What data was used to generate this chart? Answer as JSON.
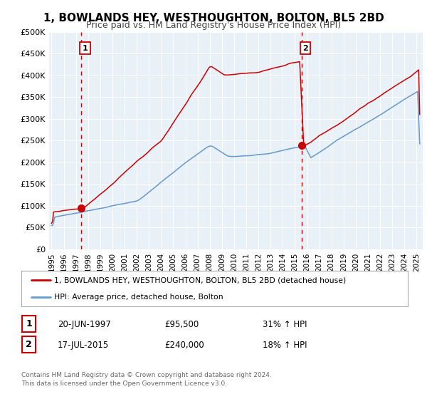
{
  "title": "1, BOWLANDS HEY, WESTHOUGHTON, BOLTON, BL5 2BD",
  "subtitle": "Price paid vs. HM Land Registry's House Price Index (HPI)",
  "title_fontsize": 11,
  "subtitle_fontsize": 9,
  "bg_color": "#ffffff",
  "plot_bg_color": "#e8f0f8",
  "grid_color": "#ffffff",
  "red_color": "#cc0000",
  "blue_color": "#6699cc",
  "sale1_x": 1997.46,
  "sale1_y": 95500,
  "sale2_x": 2015.54,
  "sale2_y": 240000,
  "xmin": 1994.8,
  "xmax": 2025.5,
  "ymin": 0,
  "ymax": 500000,
  "yticks": [
    0,
    50000,
    100000,
    150000,
    200000,
    250000,
    300000,
    350000,
    400000,
    450000,
    500000
  ],
  "ytick_labels": [
    "£0",
    "£50K",
    "£100K",
    "£150K",
    "£200K",
    "£250K",
    "£300K",
    "£350K",
    "£400K",
    "£450K",
    "£500K"
  ],
  "legend_line1": "1, BOWLANDS HEY, WESTHOUGHTON, BOLTON, BL5 2BD (detached house)",
  "legend_line2": "HPI: Average price, detached house, Bolton",
  "annotation1_date": "20-JUN-1997",
  "annotation1_price": "£95,500",
  "annotation1_hpi": "31% ↑ HPI",
  "annotation2_date": "17-JUL-2015",
  "annotation2_price": "£240,000",
  "annotation2_hpi": "18% ↑ HPI",
  "footer1": "Contains HM Land Registry data © Crown copyright and database right 2024.",
  "footer2": "This data is licensed under the Open Government Licence v3.0."
}
